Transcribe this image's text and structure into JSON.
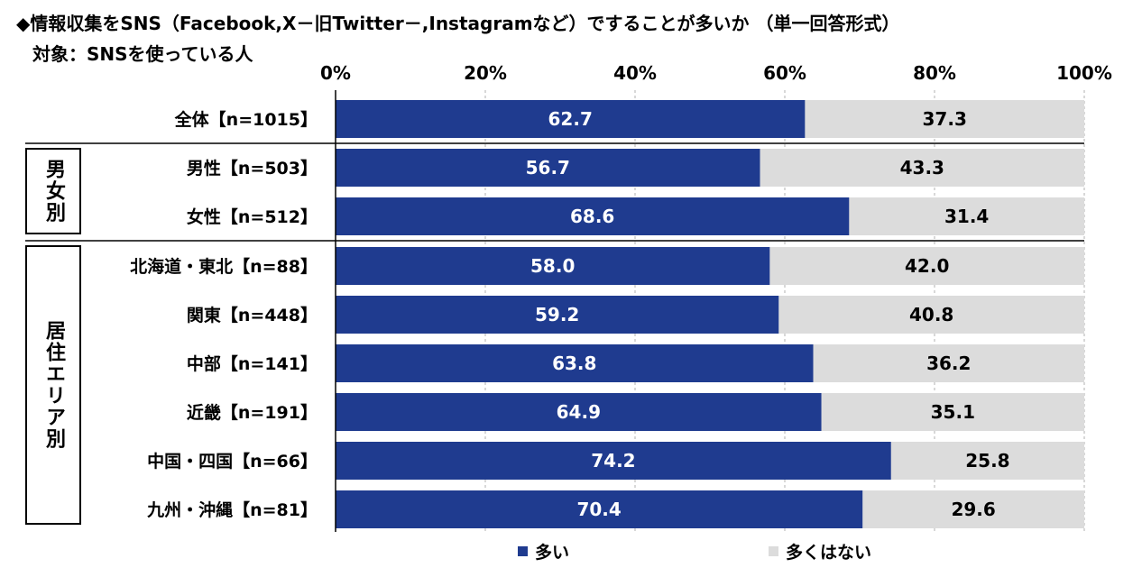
{
  "header": {
    "title": "◆情報収集をSNS（Facebook,X－旧Twitter－,Instagramなど）ですることが多いか （単一回答形式）",
    "subtitle": "対象：SNSを使っている人"
  },
  "groups": [
    {
      "label": "男女別"
    },
    {
      "label": "居住エリア別"
    }
  ],
  "legend": [
    {
      "label": "多い"
    },
    {
      "label": "多くはない"
    }
  ],
  "colors": {
    "series1": "#1f3b8f",
    "series2": "#dcdcdc"
  },
  "chart_data": {
    "type": "bar",
    "orientation": "horizontal",
    "stacked": true,
    "percent": true,
    "title": "◆情報収集をSNS（Facebook,X－旧Twitter－,Instagramなど）ですることが多いか （単一回答形式）",
    "xlim": [
      0,
      100
    ],
    "xticks": [
      "0%",
      "20%",
      "40%",
      "60%",
      "80%",
      "100%"
    ],
    "categories": [
      "全体【n=1015】",
      "男性【n=503】",
      "女性【n=512】",
      "北海道・東北【n=88】",
      "関東【n=448】",
      "中部【n=141】",
      "近畿【n=191】",
      "中国・四国【n=66】",
      "九州・沖縄【n=81】"
    ],
    "series": [
      {
        "name": "多い",
        "values": [
          62.7,
          56.7,
          68.6,
          58.0,
          59.2,
          63.8,
          64.9,
          74.2,
          70.4
        ],
        "labels": [
          "62.7",
          "56.7",
          "68.6",
          "58.0",
          "59.2",
          "63.8",
          "64.9",
          "74.2",
          "70.4"
        ]
      },
      {
        "name": "多くはない",
        "values": [
          37.3,
          43.3,
          31.4,
          42.0,
          40.8,
          36.2,
          35.1,
          25.8,
          29.6
        ],
        "labels": [
          "37.3",
          "43.3",
          "31.4",
          "42.0",
          "40.8",
          "36.2",
          "35.1",
          "25.8",
          "29.6"
        ]
      }
    ],
    "legend_position": "bottom"
  }
}
